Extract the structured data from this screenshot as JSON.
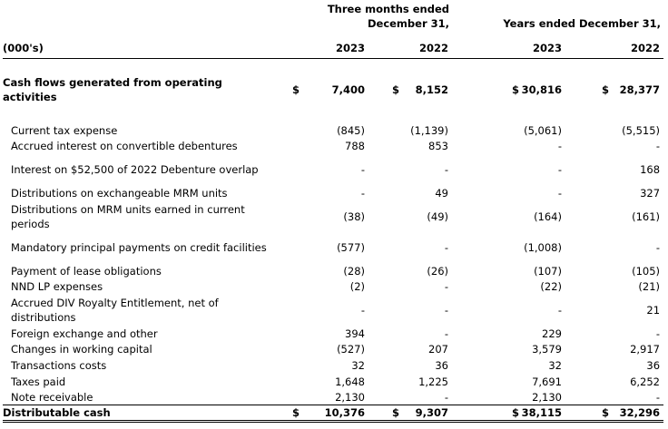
{
  "header": {
    "unit_label": "(000's)",
    "groups": [
      "Three months ended December 31,",
      "Years ended December 31,"
    ],
    "columns": [
      "2023",
      "2022",
      "2023",
      "2022"
    ]
  },
  "rows": [
    {
      "label": "Cash flows generated from operating activities",
      "currency": "$",
      "values": [
        "7,400",
        "8,152",
        "30,816",
        "28,377"
      ]
    },
    {
      "label": "Current tax expense",
      "values": [
        "(845)",
        "(1,139)",
        "(5,061)",
        "(5,515)"
      ]
    },
    {
      "label": "Accrued interest on convertible debentures",
      "values": [
        "788",
        "853",
        "-",
        "-"
      ]
    },
    {
      "label": "Interest on $52,500 of 2022 Debenture overlap",
      "values": [
        "-",
        "-",
        "-",
        "168"
      ]
    },
    {
      "label": "Distributions on exchangeable MRM units",
      "values": [
        "-",
        "49",
        "-",
        "327"
      ]
    },
    {
      "label": "Distributions on MRM units earned in current periods",
      "values": [
        "(38)",
        "(49)",
        "(164)",
        "(161)"
      ]
    },
    {
      "label": "Mandatory principal payments on credit facilities",
      "values": [
        "(577)",
        "-",
        "(1,008)",
        "-"
      ]
    },
    {
      "label": "Payment of lease obligations",
      "values": [
        "(28)",
        "(26)",
        "(107)",
        "(105)"
      ]
    },
    {
      "label": "NND LP expenses",
      "values": [
        "(2)",
        "-",
        "(22)",
        "(21)"
      ]
    },
    {
      "label": "Accrued DIV Royalty Entitlement, net of distributions",
      "values": [
        "-",
        "-",
        "-",
        "21"
      ]
    },
    {
      "label": "Foreign exchange and other",
      "values": [
        "394",
        "-",
        "229",
        "-"
      ]
    },
    {
      "label": "Changes in working capital",
      "values": [
        "(527)",
        "207",
        "3,579",
        "2,917"
      ]
    },
    {
      "label": "Transactions costs",
      "values": [
        "32",
        "36",
        "32",
        "36"
      ]
    },
    {
      "label": "Taxes paid",
      "values": [
        "1,648",
        "1,225",
        "7,691",
        "6,252"
      ]
    },
    {
      "label": "Note receivable",
      "values": [
        "2,130",
        "-",
        "2,130",
        "-"
      ]
    },
    {
      "label": "Distributable cash",
      "currency": "$",
      "values": [
        "10,376",
        "9,307",
        "38,115",
        "32,296"
      ]
    }
  ]
}
